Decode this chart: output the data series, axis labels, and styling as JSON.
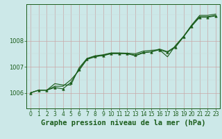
{
  "title": "Graphe pression niveau de la mer (hPa)",
  "background_color": "#cce8e8",
  "plot_bg_color": "#cce8e8",
  "grid_color_major": "#aaaacc",
  "grid_color_minor": "#bbdddd",
  "line_color": "#1a5c1a",
  "marker_color": "#1a5c1a",
  "axis_color": "#1a5c1a",
  "text_color": "#1a5c1a",
  "xlim": [
    -0.5,
    23.5
  ],
  "ylim": [
    1005.4,
    1009.4
  ],
  "yticks": [
    1006,
    1007,
    1008
  ],
  "xticks": [
    0,
    1,
    2,
    3,
    4,
    5,
    6,
    7,
    8,
    9,
    10,
    11,
    12,
    13,
    14,
    15,
    16,
    17,
    18,
    19,
    20,
    21,
    22,
    23
  ],
  "series": [
    [
      1006.0,
      1006.1,
      1006.1,
      1006.2,
      1006.15,
      1006.4,
      1006.9,
      1007.3,
      1007.4,
      1007.42,
      1007.5,
      1007.5,
      1007.5,
      1007.45,
      1007.55,
      1007.57,
      1007.65,
      1007.55,
      1007.75,
      1008.15,
      1008.55,
      1008.9,
      1008.9,
      1008.95
    ],
    [
      1006.0,
      1006.1,
      1006.1,
      1006.25,
      1006.25,
      1006.5,
      1006.85,
      1007.28,
      1007.38,
      1007.44,
      1007.52,
      1007.52,
      1007.5,
      1007.42,
      1007.53,
      1007.58,
      1007.68,
      1007.58,
      1007.78,
      1008.15,
      1008.58,
      1008.92,
      1008.92,
      1008.97
    ],
    [
      1006.0,
      1006.1,
      1006.1,
      1006.35,
      1006.3,
      1006.3,
      1006.95,
      1007.32,
      1007.42,
      1007.46,
      1007.53,
      1007.53,
      1007.52,
      1007.5,
      1007.6,
      1007.63,
      1007.65,
      1007.38,
      1007.82,
      1008.17,
      1008.6,
      1008.97,
      1008.97,
      1009.02
    ]
  ],
  "series_markers": [
    true,
    false,
    false
  ],
  "marker_style": "^",
  "marker_size": 2.5,
  "linewidth": 0.8,
  "title_fontsize": 7.5,
  "tick_fontsize": 5.5
}
